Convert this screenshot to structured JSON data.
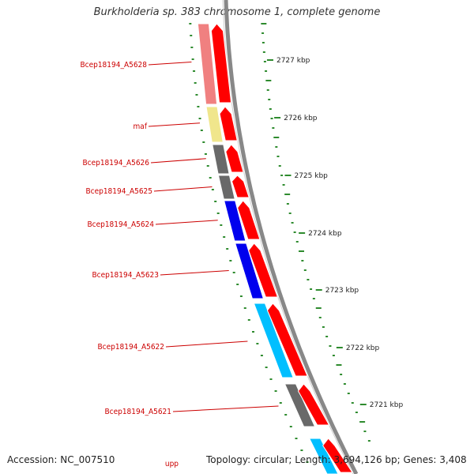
{
  "title": "Burkholderia sp. 383 chromosome 1, complete genome",
  "footer": {
    "accession": "Accession: NC_007510",
    "topology": "Topology: circular; Length: 3,694,126 bp; Genes: 3,408"
  },
  "colors": {
    "label": "#cc0000",
    "cds_arrow": "#ff0000",
    "backbone": "#888888",
    "tick": "#2e8b2e",
    "kbp_text": "#222222"
  },
  "genes": [
    {
      "name": "Bcep18194_A5628",
      "color": "#f08080"
    },
    {
      "name": "maf",
      "color": "#f0e68c"
    },
    {
      "name": "Bcep18194_A5626",
      "color": "#696969"
    },
    {
      "name": "Bcep18194_A5625",
      "color": "#696969"
    },
    {
      "name": "Bcep18194_A5624",
      "color": "#0000ee"
    },
    {
      "name": "Bcep18194_A5623",
      "color": "#0000ee"
    },
    {
      "name": "Bcep18194_A5622",
      "color": "#00bfff"
    },
    {
      "name": "Bcep18194_A5621",
      "color": "#696969"
    },
    {
      "name": "upp",
      "color": "#00bfff"
    }
  ],
  "kbp_ticks": [
    "2727 kbp",
    "2726 kbp",
    "2725 kbp",
    "2724 kbp",
    "2723 kbp",
    "2722 kbp",
    "2721 kbp"
  ]
}
